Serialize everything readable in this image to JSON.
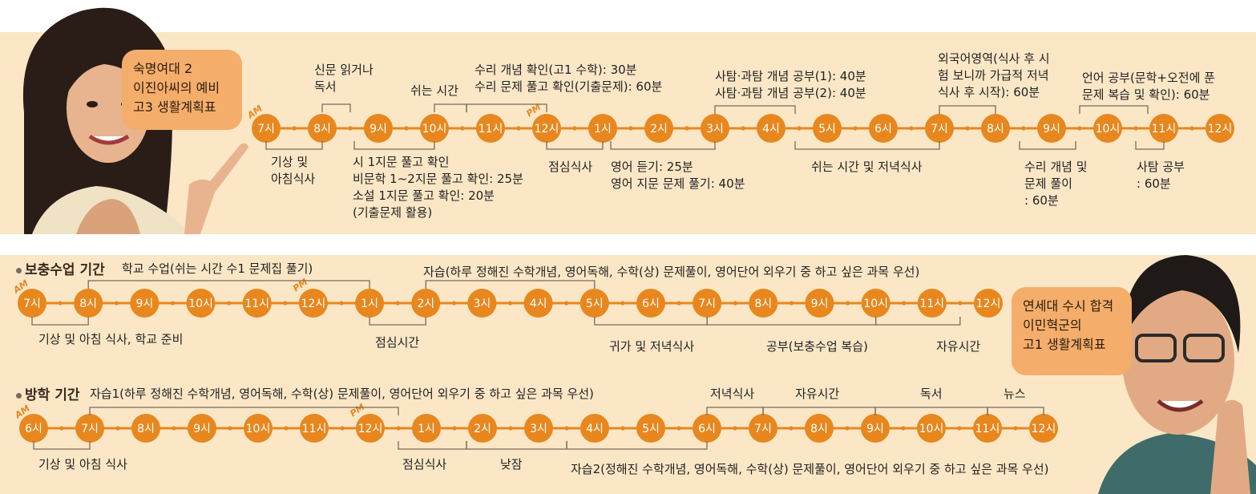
{
  "colors": {
    "orange": "#e8871e",
    "panel": "#fbe7c6",
    "bubble": "#f4ad6a",
    "bracket": "#7a6a60"
  },
  "top": {
    "bubble": "숙명여대 2\n이진아씨의 예비\n고3 생활계획표",
    "nodes": [
      "7시",
      "8시",
      "9시",
      "10시",
      "11시",
      "12시",
      "1시",
      "2시",
      "3시",
      "4시",
      "5시",
      "6시",
      "7시",
      "8시",
      "9시",
      "10시",
      "11시",
      "12시"
    ],
    "am": "AM",
    "pm": "PM",
    "labels": {
      "a1": "기상 및\n아침식사",
      "a2": "신문 읽거나\n독서",
      "a3": "시 1지문 풀고 확인\n비문학 1~2지문 풀고 확인: 25분\n소설 1지문 풀고 확인: 20분\n(기출문제 활용)",
      "a4": "쉬는 시간",
      "a5": "수리 개념 확인(고1 수학): 30분\n수리 문제 풀고 확인(기출문제): 60분",
      "a6": "점심식사",
      "a7": "영어 듣기: 25분\n영어 지문 문제 풀기: 40분",
      "a8": "사탐·과탐 개념 공부(1): 40분\n사탐·과탐 개념 공부(2): 40분",
      "a9": "쉬는 시간 및 저녁식사",
      "a10": "외국어영역(식사 후 시\n험 보니까 가급적 저녁\n식사 후 시작): 60분",
      "a11": "수리 개념 및\n문제 풀이\n: 60분",
      "a12": "언어 공부(문학+오전에 푼\n문제 복습 및 확인): 60분",
      "a13": "사탐 공부\n: 60분"
    }
  },
  "bottom": {
    "bubble": "연세대 수시 합격\n이민혁군의\n고1 생활계획표",
    "row1": {
      "title": "보충수업 기간",
      "nodes": [
        "7시",
        "8시",
        "9시",
        "10시",
        "11시",
        "12시",
        "1시",
        "2시",
        "3시",
        "4시",
        "5시",
        "6시",
        "7시",
        "8시",
        "9시",
        "10시",
        "11시",
        "12시"
      ],
      "am": "AM",
      "pm": "PM",
      "labels": {
        "b1": "기상 및 아침 식사, 학교 준비",
        "b2": "학교 수업(쉬는 시간 수1 문제집 풀기)",
        "b3": "점심시간",
        "b4": "자습(하루 정해진 수학개념, 영어독해, 수학(상) 문제풀이, 영어단어 외우기 중 하고 싶은 과목 우선)",
        "b5": "귀가 및 저녁식사",
        "b6": "공부(보충수업 복습)",
        "b7": "자유시간"
      }
    },
    "row2": {
      "title": "방학 기간",
      "nodes": [
        "6시",
        "7시",
        "8시",
        "9시",
        "10시",
        "11시",
        "12시",
        "1시",
        "2시",
        "3시",
        "4시",
        "5시",
        "6시",
        "7시",
        "8시",
        "9시",
        "10시",
        "11시",
        "12시"
      ],
      "am": "AM",
      "pm": "PM",
      "labels": {
        "c1": "기상 및 아침 식사",
        "c2": "자습1(하루 정해진 수학개념, 영어독해, 수학(상) 문제풀이, 영어단어 외우기 중 하고 싶은 과목 우선)",
        "c3": "점심식사",
        "c4": "낮잠",
        "c5": "자습2(정해진 수학개념, 영어독해, 수학(상) 문제풀이, 영어단어 외우기 중 하고 싶은 과목 우선)",
        "c6": "저녁식사",
        "c7": "자유시간",
        "c8": "독서",
        "c9": "뉴스"
      }
    }
  }
}
